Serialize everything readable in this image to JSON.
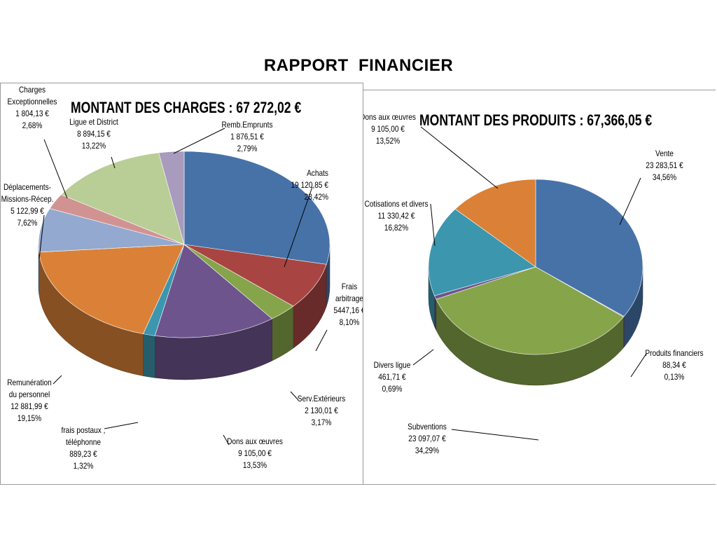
{
  "page": {
    "title": "RAPPORT  FINANCIER"
  },
  "chart_data": [
    {
      "type": "pie",
      "title": "MONTANT DES CHARGES : 67 272,02 €",
      "categories": [
        "Achats",
        "Frais arbitrage",
        "Serv.Extérieurs",
        "Dons aux œuvres",
        "frais postaux , téléphonne",
        "Remunération du personnel",
        "Déplacements-Missions-Récep.",
        "Charges Exceptionnelles",
        "Ligue et District",
        "Remb.Emprunts"
      ],
      "values": [
        19120.85,
        5447.16,
        2130.01,
        9105.0,
        889.23,
        12881.99,
        5122.99,
        1804.13,
        8894.15,
        1876.51
      ],
      "percents": [
        28.42,
        8.1,
        3.17,
        13.53,
        1.32,
        19.15,
        7.62,
        2.68,
        13.22,
        2.79
      ],
      "colors": [
        "#4672a8",
        "#a84542",
        "#86a44a",
        "#6e548d",
        "#3c96ae",
        "#da8137",
        "#93a9cf",
        "#d19392",
        "#b9cd96",
        "#a99bbd"
      ],
      "labels": [
        [
          "Achats",
          "19 120,85 €",
          "28,42%"
        ],
        [
          "Frais",
          "arbitrage",
          "5447,16 €",
          "8,10%"
        ],
        [
          "Serv.Extérieurs",
          "2 130,01 €",
          "3,17%"
        ],
        [
          "Dons aux œuvres",
          "9 105,00 €",
          "13,53%"
        ],
        [
          "frais postaux ,",
          "téléphonne",
          "889,23 €",
          "1,32%"
        ],
        [
          "Remunération",
          "du personnel",
          "12 881,99 €",
          "19,15%"
        ],
        [
          "Déplacements-",
          "Missions-Récep.",
          "5 122,99 €",
          "7,62%"
        ],
        [
          "Charges",
          "Exceptionnelles",
          "1 804,13 €",
          "2,68%"
        ],
        [
          "Ligue et District",
          "8 894,15 €",
          "13,22%"
        ],
        [
          "Remb.Emprunts",
          "1 876,51 €",
          "2,79%"
        ]
      ]
    },
    {
      "type": "pie",
      "title": "MONTANT DES PRODUITS : 67,366,05  €",
      "categories": [
        "Vente",
        "Produits financiers",
        "Subventions",
        "Divers ligue",
        "Cotisations et divers",
        "Dons aux œuvres"
      ],
      "values": [
        23283.51,
        88.34,
        23097.07,
        461.71,
        11330.42,
        9105.0
      ],
      "percents": [
        34.56,
        0.13,
        34.29,
        0.69,
        16.82,
        13.52
      ],
      "colors": [
        "#4672a8",
        "#a84542",
        "#86a44a",
        "#6e548d",
        "#3c96ae",
        "#da8137"
      ],
      "labels": [
        [
          "Vente",
          "23 283,51 €",
          "34,56%"
        ],
        [
          "Produits financiers",
          "88,34 €",
          "0,13%"
        ],
        [
          "Subventions",
          "23 097,07 €",
          "34,29%"
        ],
        [
          "Divers ligue",
          "461,71 €",
          "0,69%"
        ],
        [
          "Cotisations et divers",
          "11 330,42 €",
          "16,82%"
        ],
        [
          "Dons aux œuvres",
          "9 105,00 €",
          "13,52%"
        ]
      ]
    }
  ]
}
